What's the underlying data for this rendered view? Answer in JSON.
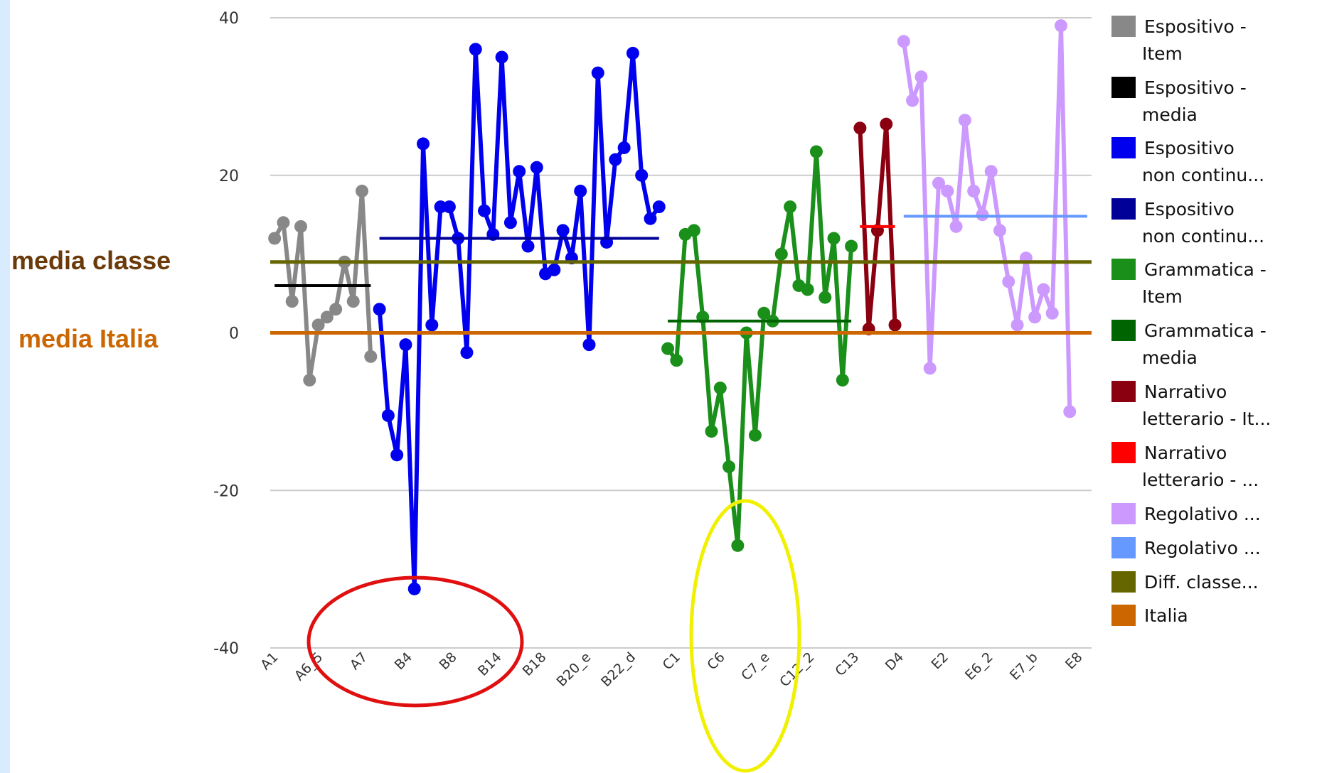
{
  "annotations": {
    "media_classe": "media classe",
    "media_italia": "media Italia",
    "media_classe_color": "#6b3a0a",
    "media_italia_color": "#cc6600"
  },
  "colors": {
    "left_strip": "#d9ecff",
    "grid": "#cccccc",
    "red_ellipse": "#e01010",
    "yellow_ellipse": "#f0f000"
  },
  "chart_data": {
    "type": "line",
    "ylim": [
      -40,
      40
    ],
    "yticks": [
      40,
      20,
      0,
      -20,
      -40
    ],
    "ytick_labels": [
      "40",
      "20",
      "0",
      "-20",
      "-40"
    ],
    "xtick_labels": [
      "A1",
      "A6_5",
      "A7",
      "B4",
      "B8",
      "B14",
      "B18",
      "B20_e",
      "B22_d",
      "C1",
      "C6",
      "C7_e",
      "C12_2",
      "C13",
      "D4",
      "E2",
      "E6_2",
      "E7_b",
      "E8"
    ],
    "n_positions": 94,
    "series": [
      {
        "name": "Espositivo - Item",
        "color": "#888888",
        "kind": "line",
        "x": [
          0,
          1,
          2,
          3,
          4,
          5,
          6,
          7,
          8,
          9,
          10,
          11
        ],
        "y": [
          12,
          14,
          4,
          13.5,
          -6,
          1,
          2,
          3,
          9,
          4,
          18,
          -3
        ]
      },
      {
        "name": "Espositivo - media",
        "color": "#000000",
        "kind": "mean",
        "x": [
          0,
          11
        ],
        "y": [
          6,
          6
        ]
      },
      {
        "name": "Espositivo non continu...",
        "color": "#0000ee",
        "kind": "line",
        "x": [
          12,
          13,
          14,
          15,
          16,
          17,
          18,
          19,
          20,
          21,
          22,
          23,
          24,
          25,
          26,
          27,
          28,
          29,
          30,
          31,
          32,
          33,
          34,
          35,
          36,
          37,
          38,
          39,
          40,
          41,
          42,
          43,
          44,
          45,
          46
        ],
        "y": [
          3,
          -10.5,
          -15.5,
          -1.5,
          -32.5,
          24,
          1,
          16,
          16,
          12,
          -2.5,
          36,
          15.5,
          12.5,
          35,
          14,
          20.5,
          11,
          21,
          7.5,
          8,
          13,
          9.5,
          18,
          -1.5,
          33,
          11.5,
          22,
          23.5,
          35.5,
          20,
          14.5,
          16,
          null,
          null
        ]
      },
      {
        "name": "Espositivo non continu...",
        "color": "#000099",
        "kind": "mean",
        "x": [
          12,
          44
        ],
        "y": [
          12,
          12
        ]
      },
      {
        "name": "Grammatica - Item",
        "color": "#1a8f1a",
        "kind": "line",
        "x": [
          45,
          46,
          47,
          48,
          49,
          50,
          51,
          52,
          53,
          54,
          55,
          56,
          57,
          58,
          59,
          60,
          61,
          62,
          63,
          64,
          65,
          66
        ],
        "y": [
          -2,
          -3.5,
          12.5,
          13,
          2,
          -12.5,
          -7,
          -17,
          -27,
          0,
          -13,
          2.5,
          1.5,
          10,
          16,
          6,
          5.5,
          23,
          4.5,
          12,
          -6,
          11
        ]
      },
      {
        "name": "Grammatica - media",
        "color": "#006400",
        "kind": "mean",
        "x": [
          45,
          66
        ],
        "y": [
          1.5,
          1.5
        ]
      },
      {
        "name": "Narrativo letterario - It...",
        "color": "#8b0010",
        "kind": "line",
        "x": [
          67,
          68,
          69,
          70,
          71
        ],
        "y": [
          26,
          0.5,
          13,
          26.5,
          1
        ]
      },
      {
        "name": "Narrativo letterario - ...",
        "color": "#ff0000",
        "kind": "mean",
        "x": [
          67,
          71
        ],
        "y": [
          13.5,
          13.5
        ]
      },
      {
        "name": "Regolativo ...",
        "color": "#cc99ff",
        "kind": "line",
        "x": [
          72,
          73,
          74,
          75,
          76,
          77,
          78,
          79,
          80,
          81,
          82,
          83,
          84,
          85,
          86,
          87,
          88,
          89,
          90,
          91,
          92,
          93
        ],
        "y": [
          37,
          29.5,
          32.5,
          -4.5,
          19,
          18,
          13.5,
          27,
          18,
          15,
          20.5,
          13,
          6.5,
          1,
          9.5,
          2,
          5.5,
          2.5,
          39,
          -10,
          null,
          null
        ]
      },
      {
        "name": "Regolativo ...",
        "color": "#6699ff",
        "kind": "mean",
        "x": [
          72,
          93
        ],
        "y": [
          14.8,
          14.8
        ]
      },
      {
        "name": "Diff. classe...",
        "color": "#666600",
        "kind": "flat",
        "x": [
          0,
          93
        ],
        "y": [
          9,
          9
        ]
      },
      {
        "name": "Italia",
        "color": "#cc6600",
        "kind": "flat",
        "x": [
          0,
          93
        ],
        "y": [
          0,
          0
        ]
      }
    ]
  },
  "legend": [
    {
      "lines": [
        "Espositivo -",
        "Item"
      ],
      "color": "#888888"
    },
    {
      "lines": [
        "Espositivo -",
        "media"
      ],
      "color": "#000000"
    },
    {
      "lines": [
        "Espositivo",
        "non continu..."
      ],
      "color": "#0000ee"
    },
    {
      "lines": [
        "Espositivo",
        "non continu..."
      ],
      "color": "#000099"
    },
    {
      "lines": [
        "Grammatica -",
        "Item"
      ],
      "color": "#1a8f1a"
    },
    {
      "lines": [
        "Grammatica -",
        "media"
      ],
      "color": "#006400"
    },
    {
      "lines": [
        "Narrativo",
        "letterario - It..."
      ],
      "color": "#8b0010"
    },
    {
      "lines": [
        "Narrativo",
        "letterario - ..."
      ],
      "color": "#ff0000"
    },
    {
      "lines": [
        "Regolativo ..."
      ],
      "color": "#cc99ff"
    },
    {
      "lines": [
        "Regolativo ..."
      ],
      "color": "#6699ff"
    },
    {
      "lines": [
        "Diff. classe..."
      ],
      "color": "#666600"
    },
    {
      "lines": [
        "Italia"
      ],
      "color": "#cc6600"
    }
  ]
}
